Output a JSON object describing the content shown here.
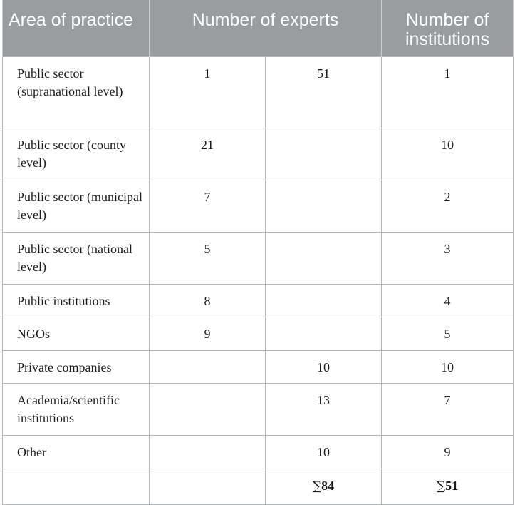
{
  "table": {
    "headers": {
      "area": "Area of practice",
      "experts": "Number of experts",
      "institutions": "Number of institutions"
    },
    "rows": [
      {
        "area": "Public sector (supranational level)",
        "experts_a": "1",
        "experts_b": "51",
        "institutions": "1"
      },
      {
        "area": "Public sector (county level)",
        "experts_a": "21",
        "experts_b": "",
        "institutions": "10"
      },
      {
        "area": "Public sector (municipal level)",
        "experts_a": "7",
        "experts_b": "",
        "institutions": "2"
      },
      {
        "area": "Public sector (national level)",
        "experts_a": "5",
        "experts_b": "",
        "institutions": "3"
      },
      {
        "area": "Public institutions",
        "experts_a": "8",
        "experts_b": "",
        "institutions": "4"
      },
      {
        "area": "NGOs",
        "experts_a": "9",
        "experts_b": "",
        "institutions": "5"
      },
      {
        "area": "Private companies",
        "experts_a": "",
        "experts_b": "10",
        "institutions": "10"
      },
      {
        "area": "Academia/scientific institutions",
        "experts_a": "",
        "experts_b": "13",
        "institutions": "7"
      },
      {
        "area": "Other",
        "experts_a": "",
        "experts_b": "10",
        "institutions": "9"
      }
    ],
    "totals": {
      "sum_symbol": "∑",
      "experts": "84",
      "institutions": "51"
    }
  }
}
